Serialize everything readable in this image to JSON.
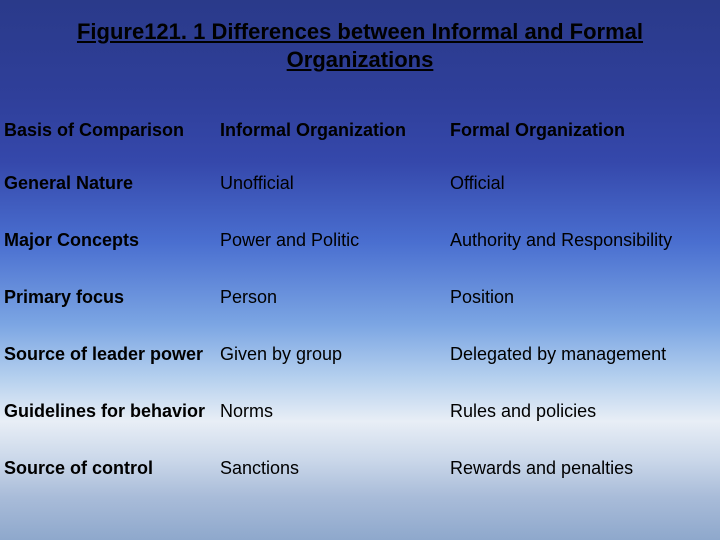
{
  "title_line1": "Figure121. 1 Differences between Informal and Formal",
  "title_line2": "Organizations",
  "headers": {
    "basis": "Basis of Comparison",
    "informal": "Informal Organization",
    "formal": "Formal Organization"
  },
  "rows": [
    {
      "basis": "General Nature",
      "informal": "Unofficial",
      "formal": "Official"
    },
    {
      "basis": "Major Concepts",
      "informal": "Power and Politic",
      "formal": "Authority and  Responsibility"
    },
    {
      "basis": "Primary focus",
      "informal": "Person",
      "formal": "Position"
    },
    {
      "basis": "Source of leader power",
      "informal": "Given by group",
      "formal": "Delegated by management"
    },
    {
      "basis": "Guidelines for behavior",
      "informal": "Norms",
      "formal": "Rules and policies"
    },
    {
      "basis": "Source of control",
      "informal": "Sanctions",
      "formal": "Rewards and penalties"
    }
  ]
}
